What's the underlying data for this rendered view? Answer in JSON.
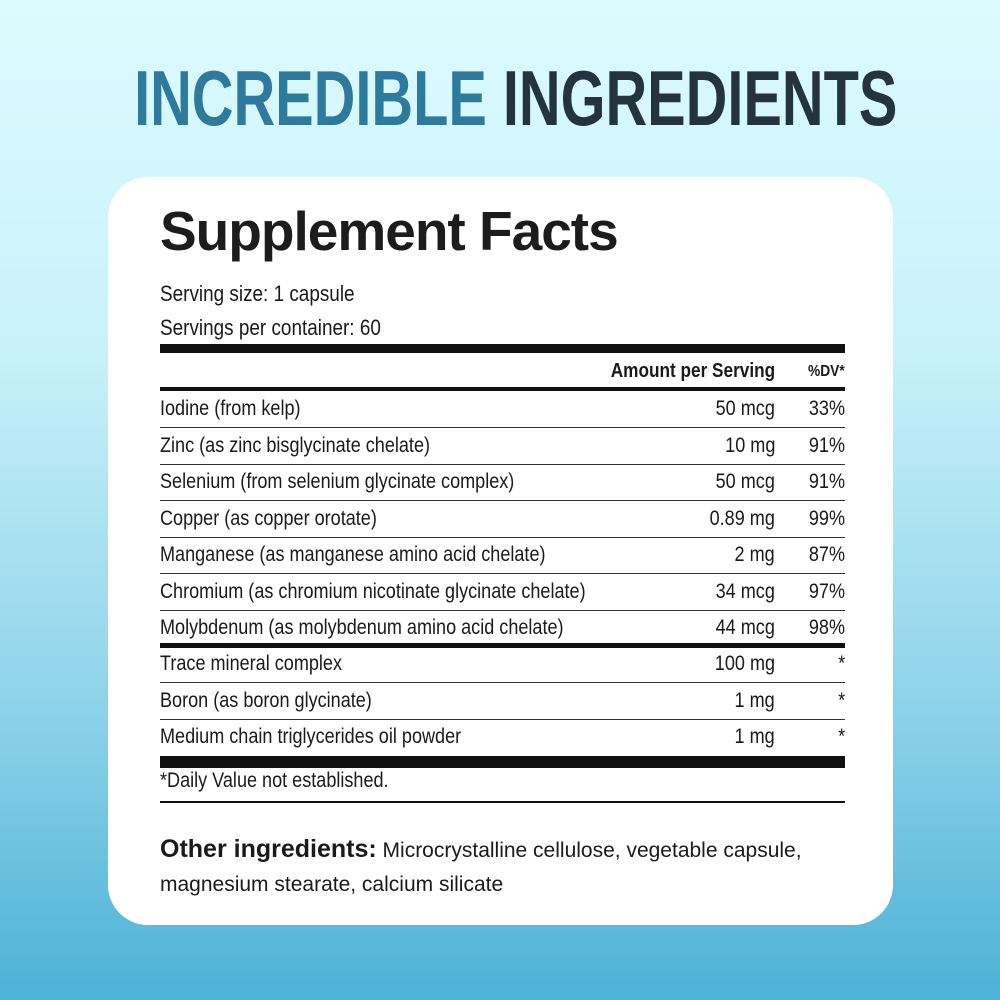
{
  "headline": {
    "part1": "INCREDIBLE",
    "part2": "INGREDIENTS"
  },
  "facts": {
    "title": "Supplement Facts",
    "serving_size": "Serving size: 1 capsule",
    "servings_per_container": "Servings per container: 60",
    "header": {
      "amount": "Amount per Serving",
      "dv": "%DV*"
    },
    "rows": [
      {
        "name": "Iodine (from kelp)",
        "amount": "50 mcg",
        "dv": "33%"
      },
      {
        "name": "Zinc (as zinc bisglycinate chelate)",
        "amount": "10 mg",
        "dv": "91%"
      },
      {
        "name": "Selenium (from selenium glycinate complex)",
        "amount": "50 mcg",
        "dv": "91%"
      },
      {
        "name": "Copper (as copper orotate)",
        "amount": "0.89 mg",
        "dv": "99%"
      },
      {
        "name": "Manganese (as manganese amino acid chelate)",
        "amount": "2 mg",
        "dv": "87%"
      },
      {
        "name": "Chromium (as chromium nicotinate glycinate chelate)",
        "amount": "34 mcg",
        "dv": "97%"
      },
      {
        "name": "Molybdenum (as molybdenum amino acid chelate)",
        "amount": "44 mcg",
        "dv": "98%"
      }
    ],
    "rows2": [
      {
        "name": "Trace mineral complex",
        "amount": "100 mg",
        "dv": "*"
      },
      {
        "name": "Boron (as boron glycinate)",
        "amount": "1 mg",
        "dv": "*"
      },
      {
        "name": "Medium chain triglycerides oil powder",
        "amount": "1 mg",
        "dv": "*"
      }
    ],
    "footnote": "*Daily Value not established.",
    "other_label": "Other ingredients:",
    "other_text": "Microcrystalline cellulose, vegetable capsule, magnesium stearate, calcium silicate"
  }
}
